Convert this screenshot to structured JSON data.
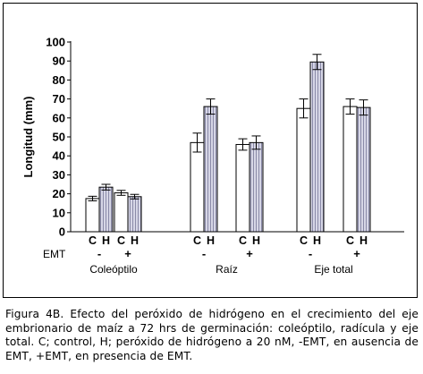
{
  "chart_data": {
    "type": "bar",
    "ylabel": "Longitud (mm)",
    "ylim": [
      0,
      100
    ],
    "yticks": [
      0,
      10,
      20,
      30,
      40,
      50,
      60,
      70,
      80,
      90,
      100
    ],
    "grid": false,
    "treatment_label": "EMT",
    "groups": [
      {
        "name": "Coleóptilo",
        "subgroups": [
          {
            "emt": "-",
            "bars": [
              {
                "label": "C",
                "value": 17.5,
                "err": 1.2
              },
              {
                "label": "H",
                "value": 23.5,
                "err": 1.5
              }
            ]
          },
          {
            "emt": "+",
            "bars": [
              {
                "label": "C",
                "value": 20.5,
                "err": 1.3
              },
              {
                "label": "H",
                "value": 18.5,
                "err": 1.2
              }
            ]
          }
        ]
      },
      {
        "name": "Raíz",
        "subgroups": [
          {
            "emt": "-",
            "bars": [
              {
                "label": "C",
                "value": 47,
                "err": 5
              },
              {
                "label": "H",
                "value": 66,
                "err": 4
              }
            ]
          },
          {
            "emt": "+",
            "bars": [
              {
                "label": "C",
                "value": 46,
                "err": 3
              },
              {
                "label": "H",
                "value": 47,
                "err": 3.5
              }
            ]
          }
        ]
      },
      {
        "name": "Eje total",
        "subgroups": [
          {
            "emt": "-",
            "bars": [
              {
                "label": "C",
                "value": 65,
                "err": 5
              },
              {
                "label": "H",
                "value": 89.5,
                "err": 4
              }
            ]
          },
          {
            "emt": "+",
            "bars": [
              {
                "label": "C",
                "value": 66,
                "err": 4
              },
              {
                "label": "H",
                "value": 65.5,
                "err": 4
              }
            ]
          }
        ]
      }
    ]
  },
  "caption": "Figura 4B. Efecto del peróxido de hidrógeno en el crecimiento del eje embrionario de maíz a 72 hrs de germinación: coleóptilo, radícula y eje total. C; control, H; peróxido de hidrógeno a 20 nM, -EMT, en ausencia de EMT, +EMT, en presencia de EMT.",
  "colors": {
    "control_fill": "#ffffff",
    "peroxide_fill": "#d6d6e6",
    "peroxide_hatch": "#8a8aa8",
    "ink": "#000000"
  }
}
